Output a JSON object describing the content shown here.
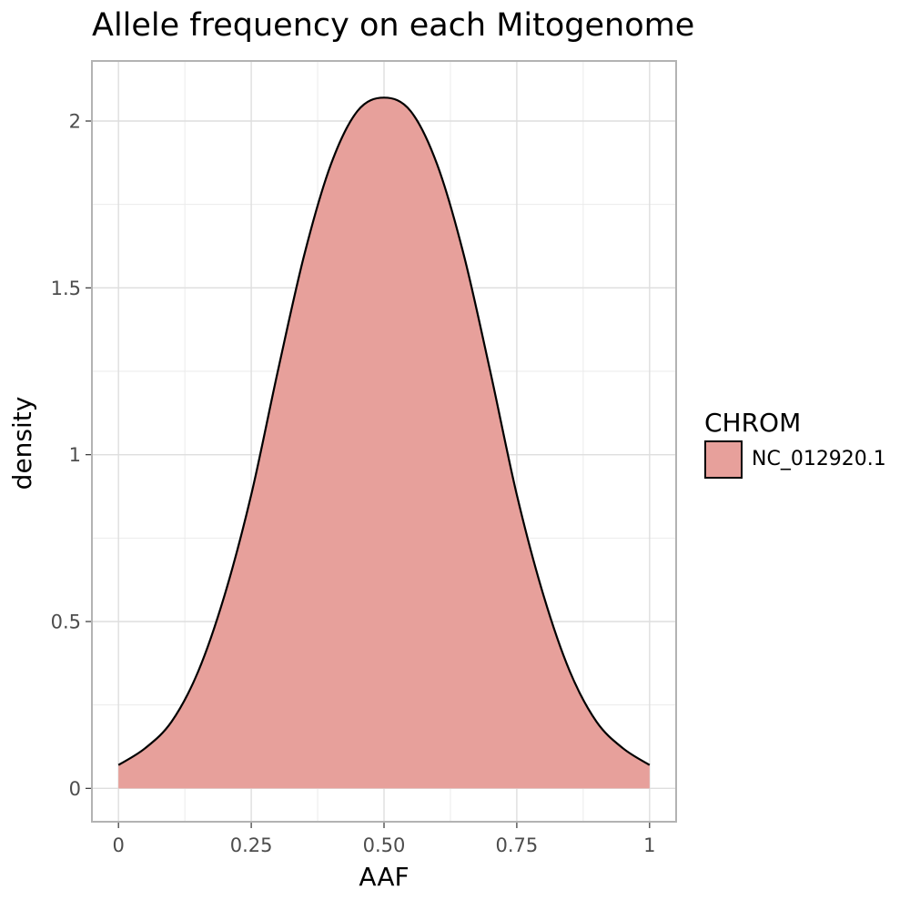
{
  "chart_data": {
    "type": "area",
    "title": "Allele frequency on each Mitogenome",
    "xlabel": "AAF",
    "ylabel": "density",
    "xlim": [
      -0.05,
      1.05
    ],
    "ylim": [
      -0.1,
      2.18
    ],
    "x_ticks": [
      {
        "value": 0,
        "label": "0"
      },
      {
        "value": 0.25,
        "label": "0.25"
      },
      {
        "value": 0.5,
        "label": "0.50"
      },
      {
        "value": 0.75,
        "label": "0.75"
      },
      {
        "value": 1,
        "label": "1"
      }
    ],
    "y_ticks": [
      {
        "value": 0,
        "label": "0"
      },
      {
        "value": 0.5,
        "label": "0.5"
      },
      {
        "value": 1,
        "label": "1"
      },
      {
        "value": 1.5,
        "label": "1.5"
      },
      {
        "value": 2,
        "label": "2"
      }
    ],
    "grid": true,
    "legend": {
      "title": "CHROM",
      "position": "right",
      "entries": [
        {
          "label": "NC_012920.1",
          "color": "#e7a09b"
        }
      ]
    },
    "series": [
      {
        "name": "NC_012920.1",
        "fill": "#e7a09b",
        "stroke": "#000000",
        "x": [
          0,
          0.05,
          0.1,
          0.15,
          0.2,
          0.25,
          0.3,
          0.35,
          0.4,
          0.45,
          0.5,
          0.55,
          0.6,
          0.65,
          0.7,
          0.75,
          0.8,
          0.85,
          0.9,
          0.95,
          1
        ],
        "y": [
          0.07,
          0.12,
          0.2,
          0.35,
          0.58,
          0.88,
          1.25,
          1.6,
          1.87,
          2.03,
          2.07,
          2.03,
          1.87,
          1.6,
          1.25,
          0.88,
          0.58,
          0.35,
          0.2,
          0.12,
          0.07
        ]
      }
    ]
  }
}
